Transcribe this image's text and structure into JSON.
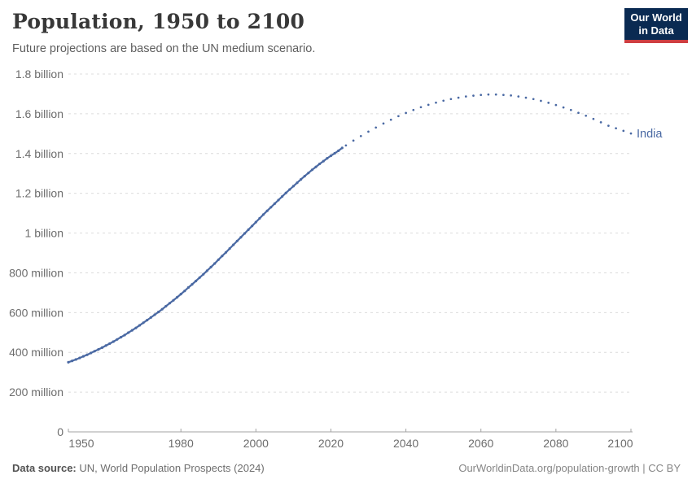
{
  "header": {
    "title": "Population, 1950 to 2100",
    "subtitle": "Future projections are based on the UN medium scenario."
  },
  "logo": {
    "line1": "Our World",
    "line2": "in Data",
    "bg_color": "#0a2a52",
    "bar_color": "#ce3e41"
  },
  "footer": {
    "source_label": "Data source:",
    "source_text": "UN, World Population Prospects (2024)",
    "right_text": "OurWorldinData.org/population-growth | CC BY"
  },
  "chart_data": {
    "type": "line",
    "title": "Population, 1950 to 2100",
    "subtitle": "Future projections are based on the UN medium scenario.",
    "entity": "India",
    "end_label": "India",
    "unit": "people (millions)",
    "line_color": "#4a69a3",
    "grid": true,
    "legend_position": "end-of-line",
    "xlim": [
      1950,
      2100
    ],
    "ylim": [
      0,
      1800
    ],
    "x_ticks": [
      1950,
      1980,
      2000,
      2020,
      2040,
      2060,
      2080,
      2100
    ],
    "y_ticks": [
      {
        "value": 0,
        "label": "0"
      },
      {
        "value": 200,
        "label": "200 million"
      },
      {
        "value": 400,
        "label": "400 million"
      },
      {
        "value": 600,
        "label": "600 million"
      },
      {
        "value": 800,
        "label": "800 million"
      },
      {
        "value": 1000,
        "label": "1 billion"
      },
      {
        "value": 1200,
        "label": "1.2 billion"
      },
      {
        "value": 1400,
        "label": "1.4 billion"
      },
      {
        "value": 1600,
        "label": "1.6 billion"
      },
      {
        "value": 1800,
        "label": "1.8 billion"
      }
    ],
    "series": [
      {
        "name": "estimates",
        "style": "solid",
        "points": [
          [
            1950,
            350
          ],
          [
            1951,
            357
          ],
          [
            1952,
            364
          ],
          [
            1953,
            372
          ],
          [
            1954,
            380
          ],
          [
            1955,
            388
          ],
          [
            1956,
            397
          ],
          [
            1957,
            406
          ],
          [
            1958,
            415
          ],
          [
            1959,
            424
          ],
          [
            1960,
            434
          ],
          [
            1961,
            444
          ],
          [
            1962,
            454
          ],
          [
            1963,
            465
          ],
          [
            1964,
            476
          ],
          [
            1965,
            487
          ],
          [
            1966,
            499
          ],
          [
            1967,
            511
          ],
          [
            1968,
            523
          ],
          [
            1969,
            536
          ],
          [
            1970,
            549
          ],
          [
            1971,
            562
          ],
          [
            1972,
            575
          ],
          [
            1973,
            589
          ],
          [
            1974,
            603
          ],
          [
            1975,
            617
          ],
          [
            1976,
            632
          ],
          [
            1977,
            647
          ],
          [
            1978,
            662
          ],
          [
            1979,
            677
          ],
          [
            1980,
            693
          ],
          [
            1981,
            709
          ],
          [
            1982,
            726
          ],
          [
            1983,
            742
          ],
          [
            1984,
            759
          ],
          [
            1985,
            776
          ],
          [
            1986,
            793
          ],
          [
            1987,
            811
          ],
          [
            1988,
            829
          ],
          [
            1989,
            847
          ],
          [
            1990,
            866
          ],
          [
            1991,
            885
          ],
          [
            1992,
            903
          ],
          [
            1993,
            922
          ],
          [
            1994,
            941
          ],
          [
            1995,
            960
          ],
          [
            1996,
            979
          ],
          [
            1997,
            998
          ],
          [
            1998,
            1017
          ],
          [
            1999,
            1036
          ],
          [
            2000,
            1055
          ],
          [
            2001,
            1074
          ],
          [
            2002,
            1093
          ],
          [
            2003,
            1112
          ],
          [
            2004,
            1130
          ],
          [
            2005,
            1148
          ],
          [
            2006,
            1166
          ],
          [
            2007,
            1184
          ],
          [
            2008,
            1202
          ],
          [
            2009,
            1219
          ],
          [
            2010,
            1236
          ],
          [
            2011,
            1253
          ],
          [
            2012,
            1270
          ],
          [
            2013,
            1286
          ],
          [
            2014,
            1302
          ],
          [
            2015,
            1318
          ],
          [
            2016,
            1333
          ],
          [
            2017,
            1348
          ],
          [
            2018,
            1362
          ],
          [
            2019,
            1376
          ],
          [
            2020,
            1389
          ],
          [
            2021,
            1401
          ],
          [
            2022,
            1414
          ],
          [
            2023,
            1428
          ]
        ]
      },
      {
        "name": "projection (UN medium scenario)",
        "style": "dotted",
        "points": [
          [
            2024,
            1441
          ],
          [
            2026,
            1465
          ],
          [
            2028,
            1488
          ],
          [
            2030,
            1510
          ],
          [
            2032,
            1531
          ],
          [
            2034,
            1551
          ],
          [
            2036,
            1570
          ],
          [
            2038,
            1588
          ],
          [
            2040,
            1604
          ],
          [
            2042,
            1619
          ],
          [
            2044,
            1633
          ],
          [
            2046,
            1645
          ],
          [
            2048,
            1656
          ],
          [
            2050,
            1666
          ],
          [
            2052,
            1674
          ],
          [
            2054,
            1681
          ],
          [
            2056,
            1687
          ],
          [
            2058,
            1691
          ],
          [
            2060,
            1695
          ],
          [
            2062,
            1697
          ],
          [
            2064,
            1697
          ],
          [
            2066,
            1695
          ],
          [
            2068,
            1692
          ],
          [
            2070,
            1687
          ],
          [
            2072,
            1681
          ],
          [
            2074,
            1674
          ],
          [
            2076,
            1665
          ],
          [
            2078,
            1655
          ],
          [
            2080,
            1644
          ],
          [
            2082,
            1632
          ],
          [
            2084,
            1619
          ],
          [
            2086,
            1605
          ],
          [
            2088,
            1590
          ],
          [
            2090,
            1574
          ],
          [
            2092,
            1557
          ],
          [
            2094,
            1540
          ],
          [
            2096,
            1527
          ],
          [
            2098,
            1514
          ],
          [
            2100,
            1501
          ]
        ]
      }
    ]
  }
}
